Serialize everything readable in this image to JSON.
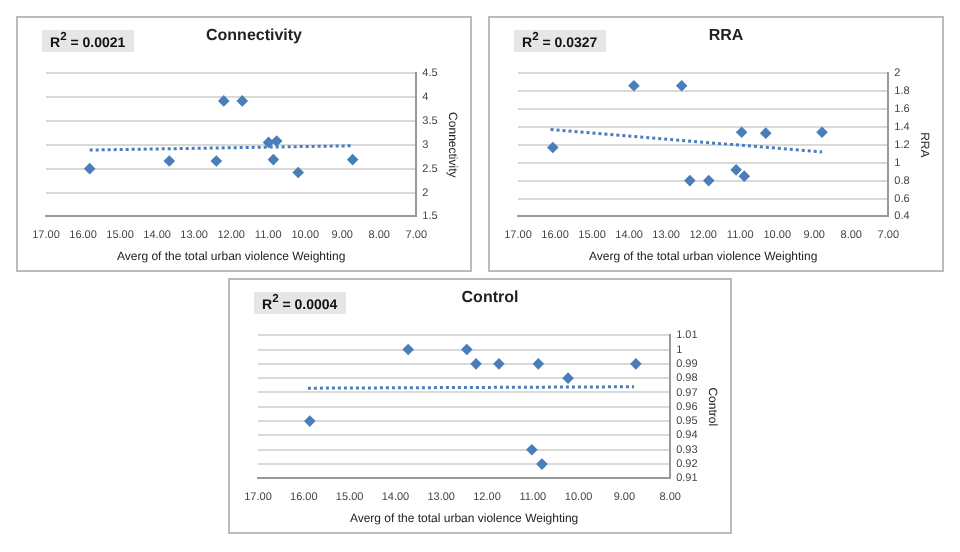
{
  "chart_data": [
    {
      "type": "scatter",
      "title": "Connectivity",
      "xlabel": "Averg of the total urban violence Weighting",
      "ylabel": "Connectivity",
      "annotations": [
        "R$^{2}$ = 0.0021"
      ],
      "grid": "y",
      "marker": "diamond",
      "xlim": [
        17,
        7
      ],
      "xticks": [
        {
          "value": 17,
          "label": "17.00"
        },
        {
          "value": 16,
          "label": "16.00"
        },
        {
          "value": 15,
          "label": "15.00"
        },
        {
          "value": 14,
          "label": "14.00"
        },
        {
          "value": 13,
          "label": "13.00"
        },
        {
          "value": 12,
          "label": "12.00"
        },
        {
          "value": 11,
          "label": "11.00"
        },
        {
          "value": 10,
          "label": "10.00"
        },
        {
          "value": 9,
          "label": "9.00"
        },
        {
          "value": 8,
          "label": "8.00"
        },
        {
          "value": 7,
          "label": "7.00"
        }
      ],
      "ylim": [
        1.5,
        4.5
      ],
      "yticks": [
        1.5,
        2,
        2.5,
        3,
        3.5,
        4,
        4.5
      ],
      "series": [
        {
          "color": "#4a7ebb",
          "x": [
            15.82,
            13.67,
            12.4,
            12.2,
            11.7,
            10.99,
            10.77,
            10.86,
            10.19,
            8.72
          ],
          "values": [
            2.5,
            2.66,
            2.66,
            3.92,
            3.92,
            3.05,
            3.08,
            2.69,
            2.42,
            2.69
          ]
        },
        {
          "type": "line",
          "color": "#4a7ebb",
          "line_style": "dotted",
          "marker": "none",
          "x": [
            15.82,
            8.72
          ],
          "values": [
            2.89,
            2.98
          ]
        }
      ]
    },
    {
      "type": "scatter",
      "title": "RRA",
      "xlabel": "Averg of the total urban violence Weighting",
      "ylabel": "RRA",
      "annotations": [
        "R$^{2}$ = 0.0327"
      ],
      "grid": "y",
      "marker": "diamond",
      "xlim": [
        17,
        7
      ],
      "xticks": [
        {
          "value": 17,
          "label": "17.00"
        },
        {
          "value": 16,
          "label": "16.00"
        },
        {
          "value": 15,
          "label": "15.00"
        },
        {
          "value": 14,
          "label": "14.00"
        },
        {
          "value": 13,
          "label": "13.00"
        },
        {
          "value": 12,
          "label": "12.00"
        },
        {
          "value": 11,
          "label": "11.00"
        },
        {
          "value": 10,
          "label": "10.00"
        },
        {
          "value": 9,
          "label": "9.00"
        },
        {
          "value": 8,
          "label": "8.00"
        },
        {
          "value": 7,
          "label": "7.00"
        }
      ],
      "ylim": [
        0.4,
        2
      ],
      "yticks": [
        0.4,
        0.6,
        0.8,
        1,
        1.2,
        1.4,
        1.6,
        1.8,
        2
      ],
      "series": [
        {
          "color": "#4a7ebb",
          "x": [
            16.06,
            13.87,
            12.58,
            12.36,
            11.85,
            11.11,
            10.96,
            10.89,
            10.31,
            8.79
          ],
          "values": [
            1.17,
            1.86,
            1.86,
            0.8,
            0.8,
            0.92,
            1.34,
            0.85,
            1.33,
            1.34
          ]
        },
        {
          "type": "line",
          "color": "#4a7ebb",
          "line_style": "dotted",
          "marker": "none",
          "x": [
            16.12,
            8.79
          ],
          "values": [
            1.37,
            1.12
          ]
        }
      ]
    },
    {
      "type": "scatter",
      "title": "Control",
      "xlabel": "Averg of the total urban violence Weighting",
      "ylabel": "Control",
      "annotations": [
        "R$^{2}$ = 0.0004"
      ],
      "grid": "y",
      "marker": "diamond",
      "xlim": [
        17,
        8
      ],
      "xticks": [
        {
          "value": 17,
          "label": "17.00"
        },
        {
          "value": 16,
          "label": "16.00"
        },
        {
          "value": 15,
          "label": "15.00"
        },
        {
          "value": 14,
          "label": "14.00"
        },
        {
          "value": 13,
          "label": "13.00"
        },
        {
          "value": 12,
          "label": "12.00"
        },
        {
          "value": 11,
          "label": "11.00"
        },
        {
          "value": 10,
          "label": "10.00"
        },
        {
          "value": 9,
          "label": "9.00"
        },
        {
          "value": 8,
          "label": "8.00"
        }
      ],
      "ylim": [
        0.91,
        1.01
      ],
      "yticks": [
        0.91,
        0.92,
        0.93,
        0.94,
        0.95,
        0.96,
        0.97,
        0.98,
        0.99,
        1,
        1.01
      ],
      "series": [
        {
          "color": "#4a7ebb",
          "x": [
            15.87,
            13.72,
            12.44,
            12.24,
            11.74,
            10.88,
            8.75,
            10.23,
            11.02,
            10.8
          ],
          "values": [
            0.95,
            1,
            1,
            0.99,
            0.99,
            0.99,
            0.99,
            0.98,
            0.93,
            0.92
          ]
        },
        {
          "type": "line",
          "color": "#4a7ebb",
          "line_style": "dotted",
          "marker": "none",
          "x": [
            15.91,
            8.79
          ],
          "values": [
            0.973,
            0.974
          ]
        }
      ]
    }
  ]
}
